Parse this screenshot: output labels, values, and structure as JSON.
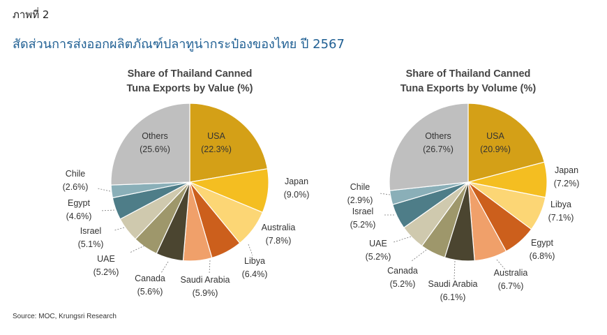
{
  "figure_label": "ภาพที่ 2",
  "heading": "สัดส่วนการส่งออกผลิตภัณฑ์ปลาทูน่ากระป๋องของไทย ปี 2567",
  "source": "Source: MOC, Krungsri Research",
  "chart_data": [
    {
      "type": "pie",
      "title": [
        "Share of Thailand Canned",
        "Tuna Exports by Value (%)"
      ],
      "slices": [
        {
          "name": "USA",
          "value": 22.3,
          "label": "(22.3%)",
          "color": "#D4A017"
        },
        {
          "name": "Japan",
          "value": 9.0,
          "label": "(9.0%)",
          "color": "#F4BE21"
        },
        {
          "name": "Australia",
          "value": 7.8,
          "label": "(7.8%)",
          "color": "#FCD675"
        },
        {
          "name": "Libya",
          "value": 6.4,
          "label": "(6.4%)",
          "color": "#CC5F1C"
        },
        {
          "name": "Saudi Arabia",
          "value": 5.9,
          "label": "(5.9%)",
          "color": "#F0A06A"
        },
        {
          "name": "Canada",
          "value": 5.6,
          "label": "(5.6%)",
          "color": "#4B4530"
        },
        {
          "name": "UAE",
          "value": 5.2,
          "label": "(5.2%)",
          "color": "#9E976B"
        },
        {
          "name": "Israel",
          "value": 5.1,
          "label": "(5.1%)",
          "color": "#CFC9AE"
        },
        {
          "name": "Egypt",
          "value": 4.6,
          "label": "(4.6%)",
          "color": "#4E7D88"
        },
        {
          "name": "Chile",
          "value": 2.6,
          "label": "(2.6%)",
          "color": "#8AAFB8"
        },
        {
          "name": "Others",
          "value": 25.6,
          "label": "(25.6%)",
          "color": "#BFBFBF"
        }
      ]
    },
    {
      "type": "pie",
      "title": [
        "Share of Thailand Canned",
        "Tuna Exports by Volume (%)"
      ],
      "slices": [
        {
          "name": "USA",
          "value": 20.9,
          "label": "(20.9%)",
          "color": "#D4A017"
        },
        {
          "name": "Japan",
          "value": 7.2,
          "label": "(7.2%)",
          "color": "#F4BE21"
        },
        {
          "name": "Libya",
          "value": 7.1,
          "label": "(7.1%)",
          "color": "#FCD675"
        },
        {
          "name": "Egypt",
          "value": 6.8,
          "label": "(6.8%)",
          "color": "#CC5F1C"
        },
        {
          "name": "Australia",
          "value": 6.7,
          "label": "(6.7%)",
          "color": "#F0A06A"
        },
        {
          "name": "Saudi Arabia",
          "value": 6.1,
          "label": "(6.1%)",
          "color": "#4B4530"
        },
        {
          "name": "Canada",
          "value": 5.2,
          "label": "(5.2%)",
          "color": "#9E976B"
        },
        {
          "name": "UAE",
          "value": 5.2,
          "label": "(5.2%)",
          "color": "#CFC9AE"
        },
        {
          "name": "Israel",
          "value": 5.2,
          "label": "(5.2%)",
          "color": "#4E7D88"
        },
        {
          "name": "Chile",
          "value": 2.9,
          "label": "(2.9%)",
          "color": "#8AAFB8"
        },
        {
          "name": "Others",
          "value": 26.7,
          "label": "(26.7%)",
          "color": "#BFBFBF"
        }
      ]
    }
  ]
}
